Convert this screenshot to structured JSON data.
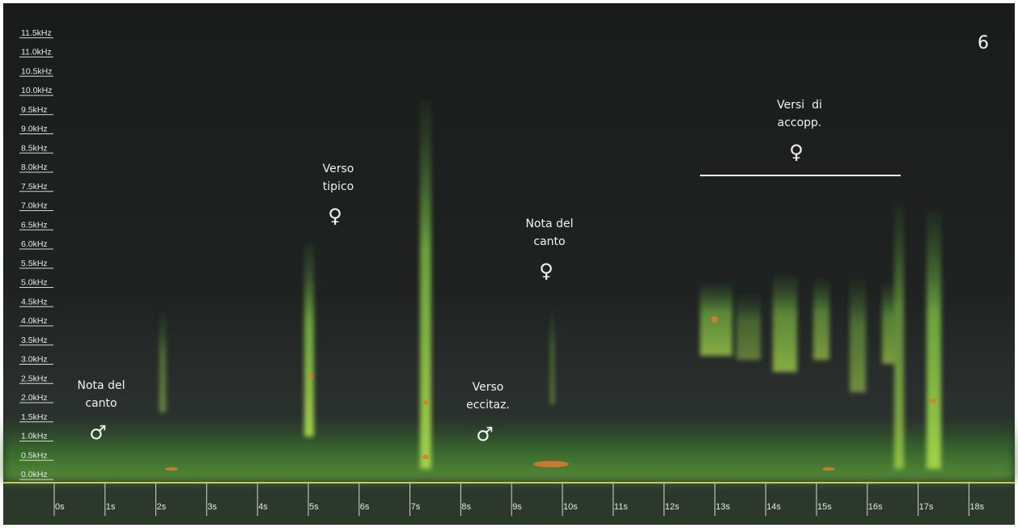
{
  "chart_data": {
    "type": "spectrogram",
    "label": "6",
    "xlim": [
      0,
      18.85
    ],
    "ylim": [
      0,
      12.35
    ],
    "xticks": [
      {
        "value": 0,
        "label": "0s"
      },
      {
        "value": 1,
        "label": "1s"
      },
      {
        "value": 2,
        "label": "2s"
      },
      {
        "value": 3,
        "label": "3s"
      },
      {
        "value": 4,
        "label": "4s"
      },
      {
        "value": 5,
        "label": "5s"
      },
      {
        "value": 6,
        "label": "6s"
      },
      {
        "value": 7,
        "label": "7s"
      },
      {
        "value": 8,
        "label": "8s"
      },
      {
        "value": 9,
        "label": "9s"
      },
      {
        "value": 10,
        "label": "10s"
      },
      {
        "value": 11,
        "label": "11s"
      },
      {
        "value": 12,
        "label": "12s"
      },
      {
        "value": 13,
        "label": "13s"
      },
      {
        "value": 14,
        "label": "14s"
      },
      {
        "value": 15,
        "label": "15s"
      },
      {
        "value": 16,
        "label": "16s"
      },
      {
        "value": 17,
        "label": "17s"
      },
      {
        "value": 18,
        "label": "18s"
      }
    ],
    "yticks": [
      {
        "value": 0,
        "label": "0.0kHz"
      },
      {
        "value": 0.5,
        "label": "0.5kHz"
      },
      {
        "value": 1,
        "label": "1.0kHz"
      },
      {
        "value": 1.5,
        "label": "1.5kHz"
      },
      {
        "value": 2,
        "label": "2.0kHz"
      },
      {
        "value": 2.5,
        "label": "2.5kHz"
      },
      {
        "value": 3,
        "label": "3.0kHz"
      },
      {
        "value": 3.5,
        "label": "3.5kHz"
      },
      {
        "value": 4,
        "label": "4.0kHz"
      },
      {
        "value": 4.5,
        "label": "4.5kHz"
      },
      {
        "value": 5,
        "label": "5.0kHz"
      },
      {
        "value": 5.5,
        "label": "5.5kHz"
      },
      {
        "value": 6,
        "label": "6.0kHz"
      },
      {
        "value": 6.5,
        "label": "6.5kHz"
      },
      {
        "value": 7,
        "label": "7.0kHz"
      },
      {
        "value": 7.5,
        "label": "7.5kHz"
      },
      {
        "value": 8,
        "label": "8.0kHz"
      },
      {
        "value": 8.5,
        "label": "8.5kHz"
      },
      {
        "value": 9,
        "label": "9.0kHz"
      },
      {
        "value": 9.5,
        "label": "9.5kHz"
      },
      {
        "value": 10,
        "label": "10.0kHz"
      },
      {
        "value": 10.5,
        "label": "10.5kHz"
      },
      {
        "value": 11,
        "label": "11.0kHz"
      },
      {
        "value": 11.5,
        "label": "11.5kHz"
      }
    ],
    "annotations": [
      {
        "lines": [
          "Nota del",
          "canto"
        ],
        "symbol": "♂"
      },
      {
        "lines": [
          "Verso",
          "tipico"
        ],
        "symbol": "♀"
      },
      {
        "lines": [
          "Nota del",
          "canto"
        ],
        "symbol": "♀"
      },
      {
        "lines": [
          "Verso",
          "eccitaz."
        ],
        "symbol": "♂"
      },
      {
        "lines": [
          "Versi  di",
          "accopp."
        ],
        "symbol": "♀"
      }
    ]
  }
}
